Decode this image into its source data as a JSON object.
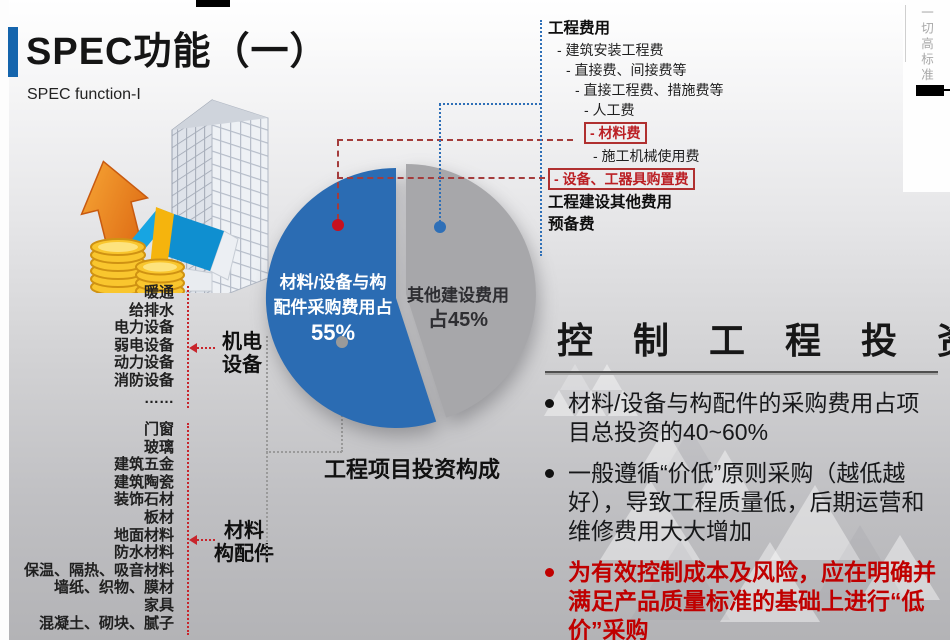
{
  "slide": {
    "title": "SPEC功能（一）",
    "subtitle": "SPEC function-I",
    "side_note": "一切高标准"
  },
  "groups": {
    "mech": {
      "label_lines": [
        "机电",
        "设备"
      ],
      "items": [
        "暖通",
        "给排水",
        "电力设备",
        "弱电设备",
        "动力设备",
        "消防设备",
        "……"
      ]
    },
    "material": {
      "label_lines": [
        "材料",
        "构配件"
      ],
      "items": [
        "门窗",
        "玻璃",
        "建筑五金",
        "建筑陶瓷",
        "装饰石材",
        "板材",
        "地面材料",
        "防水材料",
        "保温、隔热、吸音材料",
        "墙纸、织物、膜材",
        "家具",
        "混凝土、砌块、腻子"
      ]
    }
  },
  "cost_tree": {
    "items": [
      {
        "text": "工程费用",
        "style": "header",
        "level": 0
      },
      {
        "text": "- 建筑安装工程费",
        "style": "item",
        "level": 1
      },
      {
        "text": "- 直接费、间接费等",
        "style": "item",
        "level": 2
      },
      {
        "text": "- 直接工程费、措施费等",
        "style": "item",
        "level": 3
      },
      {
        "text": "- 人工费",
        "style": "item",
        "level": 4
      },
      {
        "text": "- 材料费",
        "style": "red-box",
        "level": 4
      },
      {
        "text": "- 施工机械使用费",
        "style": "item",
        "level": 5
      },
      {
        "text": "- 设备、工器具购置费",
        "style": "red-box",
        "level": 0
      },
      {
        "text": "工程建设其他费用",
        "style": "header",
        "level": 0
      },
      {
        "text": "预备费",
        "style": "header",
        "level": 0
      }
    ]
  },
  "chart_data": {
    "type": "pie",
    "title": "工程项目投资构成",
    "slices": [
      {
        "label": "材料/设备与构配件采购费用占55%",
        "label_lines": [
          "材料/设备与构",
          "配件采购费用占"
        ],
        "pct_line": "55%",
        "value": 55,
        "color": "#2b6cb3"
      },
      {
        "label": "其他建设费用占45%",
        "label_lines": [
          "其他建设费用"
        ],
        "pct_line": "占45%",
        "value": 45,
        "color": "#a7a7aa"
      }
    ],
    "legend_position": "inside-slices"
  },
  "panel": {
    "title": "控 制 工 程 投 资",
    "bullets": [
      {
        "text": "材料/设备与构配件的采购费用占项目总投资的40~60%",
        "emphasis": "normal"
      },
      {
        "text": "一般遵循“价低”原则采购（越低越好），导致工程质量低，后期运营和维修费用大大增加",
        "emphasis": "normal"
      },
      {
        "text": "为有效控制成本及风险，应在明确并满足产品质量标准的基础上进行“低价”采购",
        "emphasis": "red"
      }
    ]
  },
  "colors": {
    "accent_blue": "#2b6cb3",
    "slice_gray": "#a7a7aa",
    "alert_red": "#c00000",
    "dashed_red": "#a43c3c",
    "dotted_blue": "#2e6fb7",
    "dotted_gray": "#9a9a9a",
    "title_bar_blue": "#1565ad"
  }
}
